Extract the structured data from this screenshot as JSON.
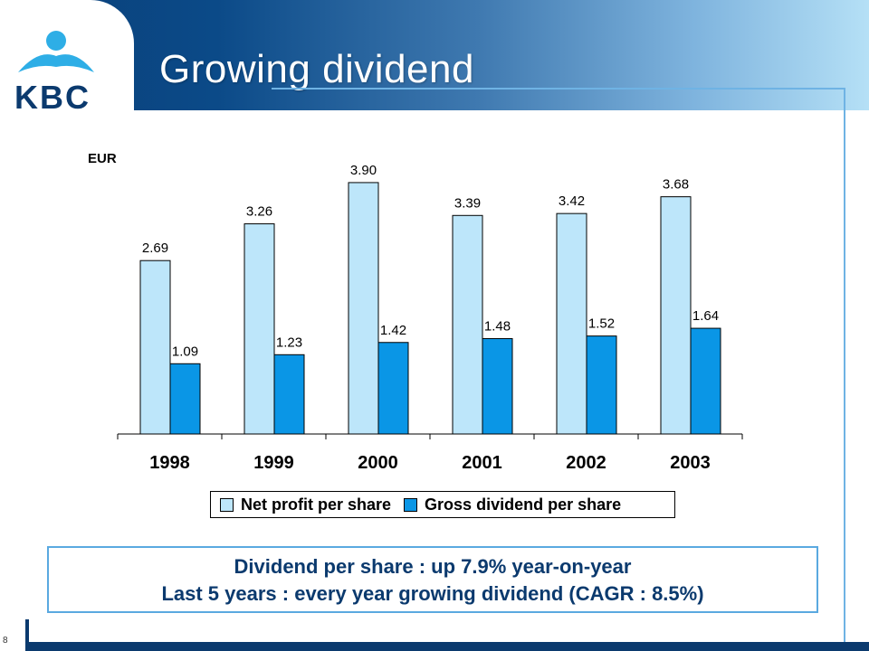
{
  "slide": {
    "title": "Growing dividend",
    "page_number": "8",
    "logo_text": "KBC"
  },
  "colors": {
    "header_dark": "#0b4a88",
    "series_net_profit": "#bde6fa",
    "series_gross_dividend": "#0a96e6",
    "callout_text": "#0b3a6e",
    "frame": "#6fb3e4"
  },
  "chart_data": {
    "type": "bar",
    "unit_label": "EUR",
    "categories": [
      "1998",
      "1999",
      "2000",
      "2001",
      "2002",
      "2003"
    ],
    "series": [
      {
        "name": "Net profit per share",
        "values": [
          2.69,
          3.26,
          3.9,
          3.39,
          3.42,
          3.68
        ],
        "labels": [
          "2.69",
          "3.26",
          "3.90",
          "3.39",
          "3.42",
          "3.68"
        ]
      },
      {
        "name": "Gross dividend per share",
        "values": [
          1.09,
          1.23,
          1.42,
          1.48,
          1.52,
          1.64
        ],
        "labels": [
          "1.09",
          "1.23",
          "1.42",
          "1.48",
          "1.52",
          "1.64"
        ]
      }
    ],
    "ylim": [
      0,
      4.3
    ],
    "grid": false,
    "legend": "bottom"
  },
  "callout": {
    "line1": "Dividend per share : up 7.9% year-on-year",
    "line2": "Last 5 years : every year growing dividend (CAGR : 8.5%)"
  }
}
